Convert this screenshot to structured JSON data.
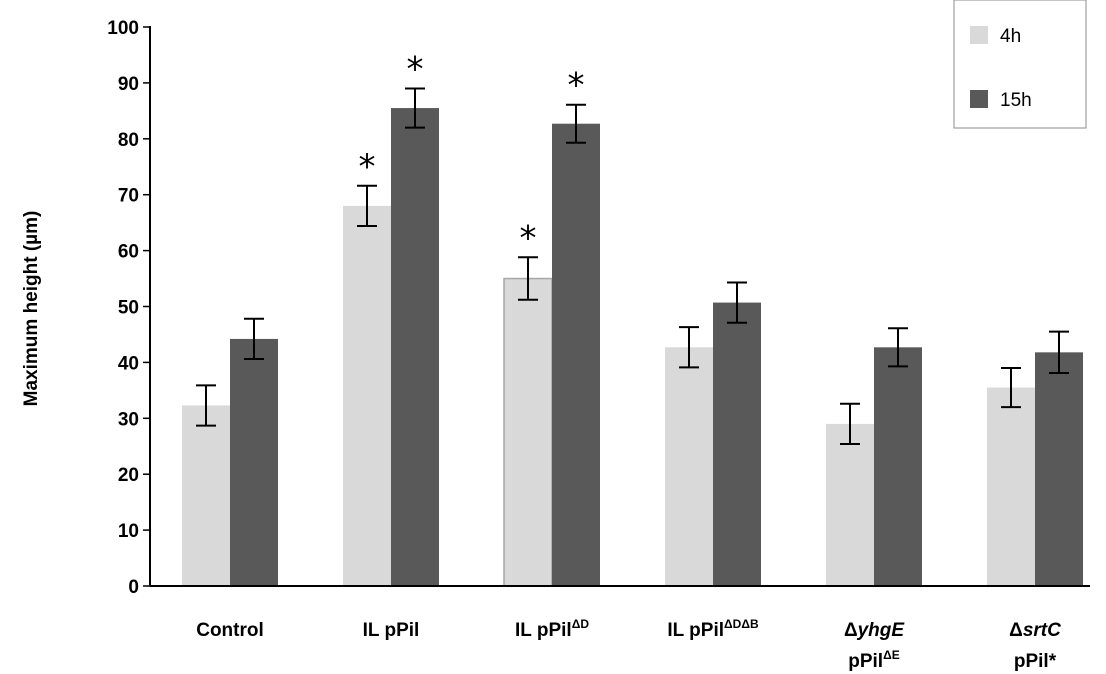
{
  "chart_data": {
    "type": "bar",
    "title": "",
    "xlabel": "",
    "ylabel": "Maximum height (µm)",
    "ylim": [
      0,
      100
    ],
    "yticks": [
      0,
      10,
      20,
      30,
      40,
      50,
      60,
      70,
      80,
      90,
      100
    ],
    "grid": false,
    "legend_position": "top-right",
    "categories": [
      {
        "line1": [
          {
            "t": "Control"
          }
        ]
      },
      {
        "line1": [
          {
            "t": "IL pPil"
          }
        ]
      },
      {
        "line1": [
          {
            "t": "IL pPil"
          },
          {
            "t": "ΔD",
            "sup": true
          }
        ]
      },
      {
        "line1": [
          {
            "t": "IL pPil"
          },
          {
            "t": "ΔDΔB",
            "sup": true
          }
        ]
      },
      {
        "line1": [
          {
            "t": "Δ"
          },
          {
            "t": "yhgE",
            "italic": true
          }
        ],
        "line2": [
          {
            "t": "pPil"
          },
          {
            "t": "ΔE",
            "sup": true
          }
        ]
      },
      {
        "line1": [
          {
            "t": "Δ"
          },
          {
            "t": "srtC",
            "italic": true
          }
        ],
        "line2": [
          {
            "t": "pPil*"
          }
        ]
      }
    ],
    "series": [
      {
        "name": "4h",
        "color": "#d9d9d9",
        "values": [
          32.3,
          68.0,
          55.0,
          42.7,
          29.0,
          35.5
        ],
        "errors": [
          3.6,
          3.6,
          3.8,
          3.6,
          3.6,
          3.5
        ],
        "significant": [
          false,
          true,
          true,
          false,
          false,
          false
        ]
      },
      {
        "name": "15h",
        "color": "#595959",
        "values": [
          44.2,
          85.5,
          82.7,
          50.7,
          42.7,
          41.8
        ],
        "errors": [
          3.6,
          3.5,
          3.4,
          3.6,
          3.4,
          3.7
        ],
        "significant": [
          false,
          true,
          true,
          false,
          false,
          false
        ]
      }
    ],
    "significance_marker": "*"
  }
}
